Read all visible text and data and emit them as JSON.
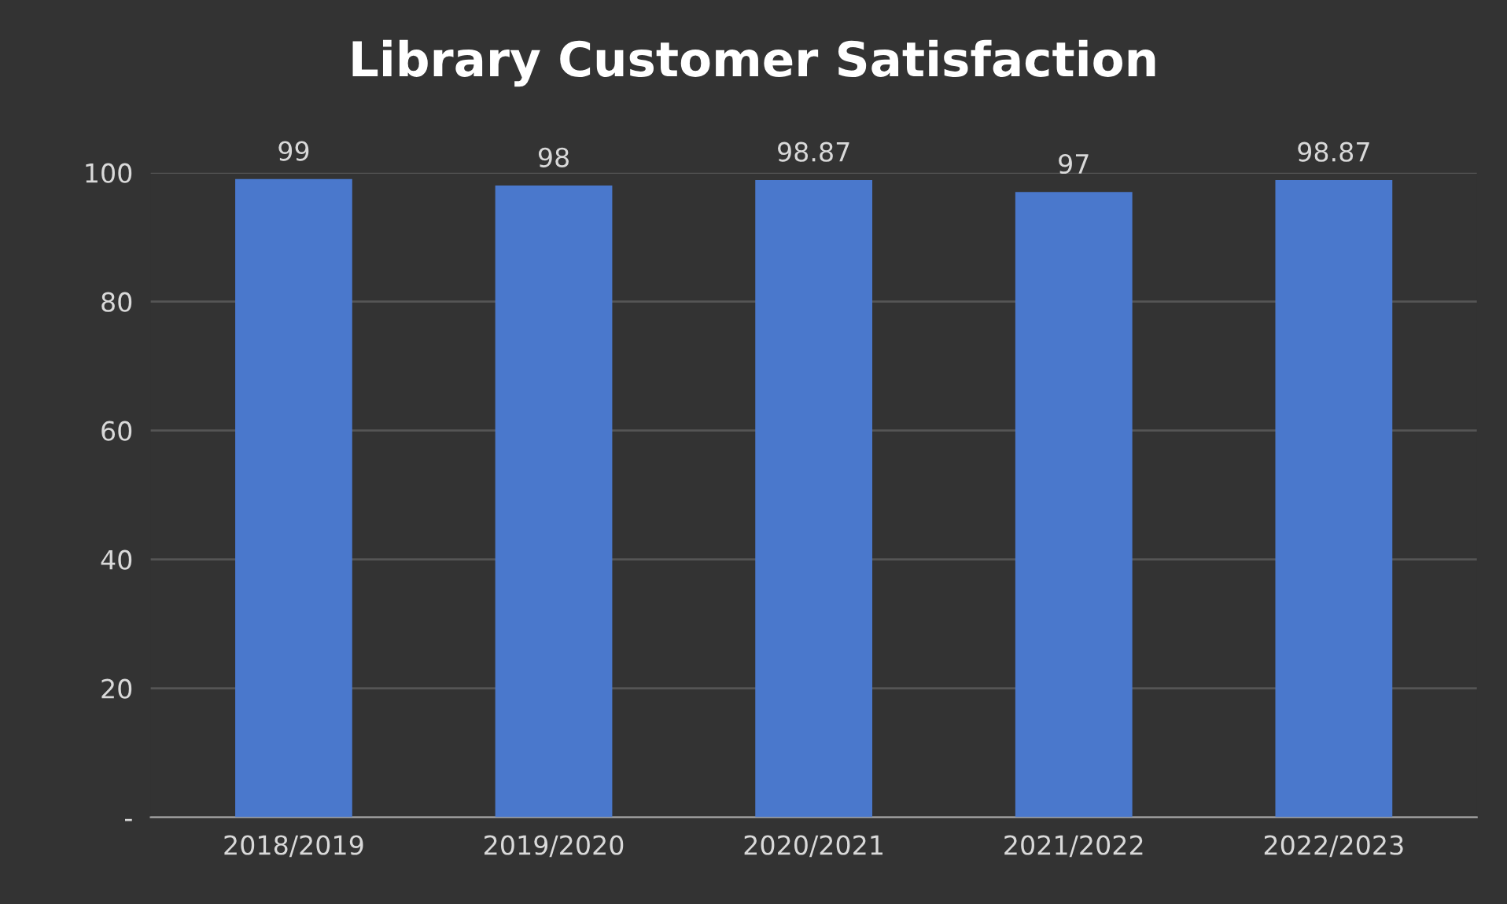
{
  "chart_data": {
    "type": "bar",
    "title": "Library Customer Satisfaction",
    "categories": [
      "2018/2019",
      "2019/2020",
      "2020/2021",
      "2021/2022",
      "2022/2023"
    ],
    "values": [
      99,
      98,
      98.87,
      97,
      98.87
    ],
    "color": "#4a78cc",
    "ylim": [
      0,
      100
    ],
    "yticks": [
      {
        "value": 0,
        "label": "-"
      },
      20,
      40,
      60,
      80,
      100
    ],
    "grid": "y",
    "data_labels": true
  }
}
